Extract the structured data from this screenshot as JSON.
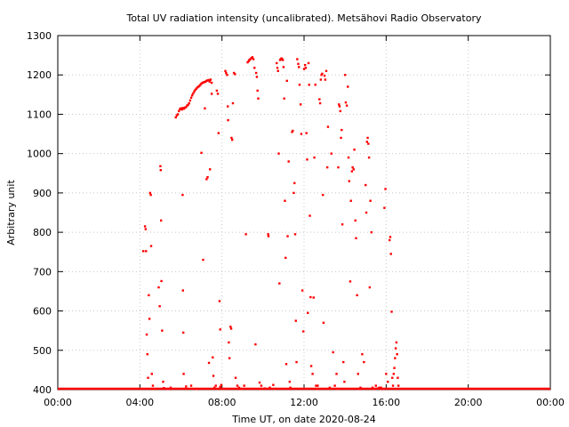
{
  "chart_data": {
    "type": "scatter",
    "title": "Total UV radiation intensity (uncalibrated). Metsähovi Radio Observatory",
    "xlabel": "Time UT, on date 2020-08-24",
    "ylabel": "Arbitrary unit",
    "xlim": [
      "00:00",
      "24:00"
    ],
    "ylim": [
      400,
      1300
    ],
    "x_ticks": [
      "00:00",
      "04:00",
      "08:00",
      "12:00",
      "16:00",
      "20:00",
      "00:00"
    ],
    "y_ticks": [
      400,
      500,
      600,
      700,
      800,
      900,
      1000,
      1100,
      1200,
      1300
    ],
    "grid": true,
    "legend": "none",
    "point_color": "#ff0000",
    "baseline": {
      "value": 400,
      "from": "00:00",
      "to": "24:00"
    },
    "series": [
      {
        "points": [
          [
            "04:10",
            752
          ],
          [
            "04:15",
            815
          ],
          [
            "04:17",
            808
          ],
          [
            "04:18",
            752
          ],
          [
            "04:20",
            540
          ],
          [
            "04:22",
            490
          ],
          [
            "04:24",
            430
          ],
          [
            "04:26",
            640
          ],
          [
            "04:28",
            580
          ],
          [
            "04:30",
            900
          ],
          [
            "04:32",
            895
          ],
          [
            "04:33",
            765
          ],
          [
            "04:35",
            440
          ],
          [
            "04:38",
            410
          ],
          [
            "04:55",
            660
          ],
          [
            "04:58",
            612
          ],
          [
            "05:00",
            968
          ],
          [
            "05:01",
            958
          ],
          [
            "05:02",
            830
          ],
          [
            "05:03",
            676
          ],
          [
            "05:05",
            550
          ],
          [
            "05:08",
            420
          ],
          [
            "05:45",
            1092
          ],
          [
            "05:48",
            1097
          ],
          [
            "05:51",
            1100
          ],
          [
            "05:54",
            1108
          ],
          [
            "05:57",
            1113
          ],
          [
            "06:00",
            1115
          ],
          [
            "06:03",
            1112
          ],
          [
            "06:06",
            1116
          ],
          [
            "06:09",
            1114
          ],
          [
            "06:12",
            1117
          ],
          [
            "06:15",
            1118
          ],
          [
            "06:18",
            1122
          ],
          [
            "06:21",
            1124
          ],
          [
            "06:24",
            1128
          ],
          [
            "06:27",
            1135
          ],
          [
            "06:30",
            1142
          ],
          [
            "06:33",
            1148
          ],
          [
            "06:36",
            1153
          ],
          [
            "06:39",
            1158
          ],
          [
            "06:42",
            1162
          ],
          [
            "06:45",
            1165
          ],
          [
            "06:48",
            1168
          ],
          [
            "06:51",
            1170
          ],
          [
            "06:54",
            1172
          ],
          [
            "06:57",
            1175
          ],
          [
            "07:00",
            1178
          ],
          [
            "07:03",
            1180
          ],
          [
            "07:06",
            1181
          ],
          [
            "07:09",
            1182
          ],
          [
            "07:12",
            1183
          ],
          [
            "07:15",
            1185
          ],
          [
            "07:18",
            1186
          ],
          [
            "07:21",
            1187
          ],
          [
            "07:24",
            1183
          ],
          [
            "07:27",
            1188
          ],
          [
            "07:30",
            1180
          ],
          [
            "06:05",
            895
          ],
          [
            "06:06",
            652
          ],
          [
            "06:07",
            545
          ],
          [
            "06:08",
            440
          ],
          [
            "07:00",
            1002
          ],
          [
            "07:05",
            730
          ],
          [
            "07:10",
            1115
          ],
          [
            "07:15",
            935
          ],
          [
            "07:18",
            940
          ],
          [
            "07:22",
            468
          ],
          [
            "07:25",
            960
          ],
          [
            "07:30",
            1152
          ],
          [
            "07:33",
            482
          ],
          [
            "07:35",
            435
          ],
          [
            "07:38",
            405
          ],
          [
            "07:42",
            410
          ],
          [
            "07:45",
            1160
          ],
          [
            "07:48",
            1152
          ],
          [
            "07:50",
            1052
          ],
          [
            "07:53",
            625
          ],
          [
            "07:55",
            553
          ],
          [
            "07:58",
            412
          ],
          [
            "08:10",
            1210
          ],
          [
            "08:12",
            1205
          ],
          [
            "08:15",
            1200
          ],
          [
            "08:17",
            1120
          ],
          [
            "08:18",
            1085
          ],
          [
            "08:20",
            520
          ],
          [
            "08:22",
            480
          ],
          [
            "08:25",
            560
          ],
          [
            "08:27",
            555
          ],
          [
            "08:28",
            1040
          ],
          [
            "08:30",
            1035
          ],
          [
            "08:32",
            1128
          ],
          [
            "08:35",
            1205
          ],
          [
            "08:38",
            1202
          ],
          [
            "08:40",
            430
          ],
          [
            "08:45",
            410
          ],
          [
            "08:50",
            405
          ],
          [
            "09:10",
            795
          ],
          [
            "09:15",
            1232
          ],
          [
            "09:18",
            1235
          ],
          [
            "09:20",
            1238
          ],
          [
            "09:23",
            1240
          ],
          [
            "09:26",
            1243
          ],
          [
            "09:29",
            1245
          ],
          [
            "09:32",
            1240
          ],
          [
            "09:35",
            1218
          ],
          [
            "09:38",
            515
          ],
          [
            "09:40",
            1205
          ],
          [
            "09:42",
            1195
          ],
          [
            "09:44",
            1160
          ],
          [
            "09:46",
            1140
          ],
          [
            "09:50",
            418
          ],
          [
            "09:55",
            410
          ],
          [
            "10:15",
            795
          ],
          [
            "10:16",
            790
          ],
          [
            "10:20",
            405
          ],
          [
            "10:30",
            412
          ],
          [
            "10:40",
            1230
          ],
          [
            "10:42",
            1218
          ],
          [
            "10:44",
            1210
          ],
          [
            "10:46",
            1000
          ],
          [
            "10:48",
            670
          ],
          [
            "10:50",
            1238
          ],
          [
            "10:52",
            1240
          ],
          [
            "10:54",
            1242
          ],
          [
            "10:56",
            1240
          ],
          [
            "10:58",
            1238
          ],
          [
            "11:00",
            1220
          ],
          [
            "11:02",
            1140
          ],
          [
            "11:04",
            880
          ],
          [
            "11:06",
            735
          ],
          [
            "11:08",
            465
          ],
          [
            "11:10",
            1185
          ],
          [
            "11:12",
            790
          ],
          [
            "11:15",
            980
          ],
          [
            "11:18",
            420
          ],
          [
            "11:25",
            1055
          ],
          [
            "11:27",
            1058
          ],
          [
            "11:30",
            900
          ],
          [
            "11:32",
            925
          ],
          [
            "11:34",
            795
          ],
          [
            "11:36",
            575
          ],
          [
            "11:38",
            470
          ],
          [
            "11:40",
            1240
          ],
          [
            "11:43",
            1228
          ],
          [
            "11:45",
            1220
          ],
          [
            "11:47",
            1175
          ],
          [
            "11:50",
            1125
          ],
          [
            "11:52",
            1050
          ],
          [
            "11:55",
            652
          ],
          [
            "11:58",
            548
          ],
          [
            "12:00",
            1215
          ],
          [
            "12:03",
            1225
          ],
          [
            "12:05",
            1218
          ],
          [
            "12:07",
            1052
          ],
          [
            "12:09",
            985
          ],
          [
            "12:11",
            595
          ],
          [
            "12:13",
            1230
          ],
          [
            "12:15",
            1175
          ],
          [
            "12:17",
            842
          ],
          [
            "12:19",
            635
          ],
          [
            "12:21",
            460
          ],
          [
            "12:25",
            440
          ],
          [
            "12:28",
            634
          ],
          [
            "12:30",
            990
          ],
          [
            "12:33",
            1175
          ],
          [
            "12:35",
            410
          ],
          [
            "12:40",
            410
          ],
          [
            "12:45",
            1138
          ],
          [
            "12:47",
            1128
          ],
          [
            "12:49",
            1188
          ],
          [
            "12:51",
            1200
          ],
          [
            "12:53",
            1203
          ],
          [
            "12:55",
            895
          ],
          [
            "12:57",
            570
          ],
          [
            "13:00",
            1198
          ],
          [
            "13:02",
            1188
          ],
          [
            "13:05",
            1210
          ],
          [
            "13:08",
            965
          ],
          [
            "13:10",
            1068
          ],
          [
            "13:20",
            1000
          ],
          [
            "13:25",
            495
          ],
          [
            "13:30",
            410
          ],
          [
            "13:35",
            440
          ],
          [
            "13:40",
            965
          ],
          [
            "13:42",
            1125
          ],
          [
            "13:44",
            1120
          ],
          [
            "13:46",
            1108
          ],
          [
            "13:48",
            1040
          ],
          [
            "13:50",
            1060
          ],
          [
            "13:52",
            820
          ],
          [
            "13:55",
            470
          ],
          [
            "13:58",
            420
          ],
          [
            "14:00",
            1200
          ],
          [
            "14:02",
            1130
          ],
          [
            "14:05",
            1122
          ],
          [
            "14:08",
            1170
          ],
          [
            "14:10",
            990
          ],
          [
            "14:12",
            930
          ],
          [
            "14:15",
            675
          ],
          [
            "14:17",
            880
          ],
          [
            "14:20",
            955
          ],
          [
            "14:22",
            965
          ],
          [
            "14:25",
            960
          ],
          [
            "14:27",
            1010
          ],
          [
            "14:30",
            830
          ],
          [
            "14:32",
            785
          ],
          [
            "14:35",
            640
          ],
          [
            "14:38",
            440
          ],
          [
            "14:50",
            490
          ],
          [
            "14:55",
            470
          ],
          [
            "15:00",
            920
          ],
          [
            "15:02",
            850
          ],
          [
            "15:04",
            1030
          ],
          [
            "15:06",
            1040
          ],
          [
            "15:08",
            1025
          ],
          [
            "15:10",
            990
          ],
          [
            "15:12",
            660
          ],
          [
            "15:14",
            880
          ],
          [
            "15:17",
            800
          ],
          [
            "15:20",
            405
          ],
          [
            "15:30",
            410
          ],
          [
            "15:40",
            405
          ],
          [
            "15:55",
            862
          ],
          [
            "15:58",
            910
          ],
          [
            "16:00",
            440
          ],
          [
            "16:05",
            420
          ],
          [
            "16:10",
            780
          ],
          [
            "16:12",
            788
          ],
          [
            "16:14",
            745
          ],
          [
            "16:16",
            598
          ],
          [
            "16:18",
            430
          ],
          [
            "16:20",
            410
          ],
          [
            "16:22",
            440
          ],
          [
            "16:24",
            455
          ],
          [
            "16:26",
            480
          ],
          [
            "16:28",
            505
          ],
          [
            "16:30",
            520
          ],
          [
            "16:32",
            490
          ],
          [
            "16:34",
            430
          ],
          [
            "16:36",
            410
          ],
          [
            "04:40",
            402
          ],
          [
            "05:10",
            404
          ],
          [
            "05:20",
            402
          ],
          [
            "05:30",
            405
          ],
          [
            "06:15",
            408
          ],
          [
            "06:30",
            410
          ],
          [
            "06:45",
            402
          ],
          [
            "07:55",
            407
          ],
          [
            "08:05",
            402
          ],
          [
            "08:55",
            402
          ],
          [
            "09:05",
            410
          ],
          [
            "09:52",
            402
          ],
          [
            "10:05",
            403
          ],
          [
            "10:35",
            402
          ],
          [
            "11:20",
            405
          ],
          [
            "12:38",
            402
          ],
          [
            "13:15",
            405
          ],
          [
            "13:38",
            402
          ],
          [
            "14:40",
            402
          ],
          [
            "14:45",
            405
          ],
          [
            "15:25",
            402
          ],
          [
            "15:35",
            403
          ],
          [
            "15:45",
            405
          ],
          [
            "15:50",
            402
          ]
        ]
      }
    ]
  }
}
